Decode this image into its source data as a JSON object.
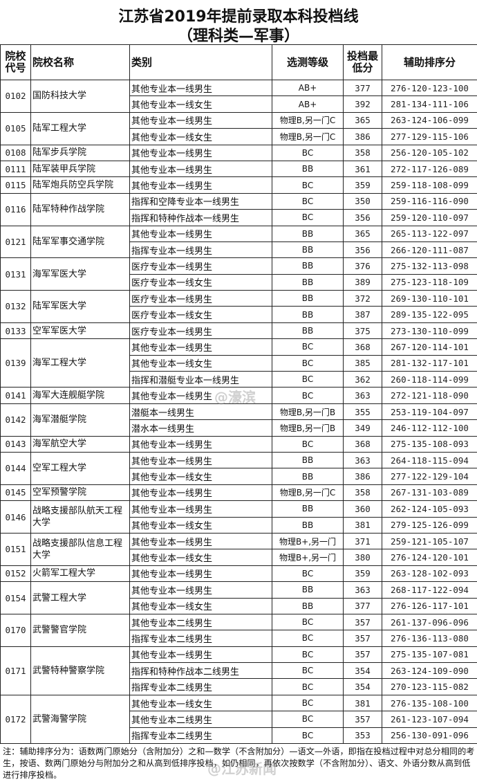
{
  "title": "江苏省2019年提前录取本科投档线",
  "subtitle": "（理科类—军事）",
  "headers": {
    "code": "院校代号",
    "name": "院校名称",
    "category": "类别",
    "level": "选测等级",
    "min": "投档最低分",
    "aux": "辅助排序分"
  },
  "schools": [
    {
      "code": "0102",
      "name": "国防科技大学",
      "rows": [
        [
          "其他专业本一线男生",
          "AB+",
          "377",
          "276-120-123-100"
        ],
        [
          "其他专业本一线女生",
          "AB+",
          "392",
          "281-134-111-106"
        ]
      ]
    },
    {
      "code": "0105",
      "name": "陆军工程大学",
      "rows": [
        [
          "其他专业本一线男生",
          "物理B,另一门C",
          "365",
          "263-124-106-099"
        ],
        [
          "其他专业本一线女生",
          "物理B,另一门C",
          "386",
          "277-129-115-106"
        ]
      ]
    },
    {
      "code": "0108",
      "name": "陆军步兵学院",
      "rows": [
        [
          "其他专业本一线男生",
          "BC",
          "358",
          "256-120-105-102"
        ]
      ]
    },
    {
      "code": "0111",
      "name": "陆军装甲兵学院",
      "rows": [
        [
          "其他专业本一线男生",
          "BB",
          "361",
          "272-117-126-089"
        ]
      ]
    },
    {
      "code": "0115",
      "name": "陆军炮兵防空兵学院",
      "rows": [
        [
          "其他专业本一线男生",
          "BC",
          "359",
          "259-118-108-099"
        ]
      ]
    },
    {
      "code": "0116",
      "name": "陆军特种作战学院",
      "rows": [
        [
          "指挥和空降专业本一线男生",
          "BC",
          "350",
          "259-116-116-090"
        ],
        [
          "指挥和特种作战本一线男生",
          "BC",
          "356",
          "259-120-110-097"
        ]
      ]
    },
    {
      "code": "0121",
      "name": "陆军军事交通学院",
      "rows": [
        [
          "其他专业本一线男生",
          "BB",
          "365",
          "265-113-122-097"
        ],
        [
          "指挥专业本一线男生",
          "BB",
          "356",
          "266-120-111-087"
        ]
      ]
    },
    {
      "code": "0131",
      "name": "海军军医大学",
      "rows": [
        [
          "医疗专业本一线男生",
          "BB",
          "376",
          "275-132-113-098"
        ],
        [
          "医疗专业本一线女生",
          "BB",
          "389",
          "275-123-118-109"
        ]
      ]
    },
    {
      "code": "0132",
      "name": "陆军军医大学",
      "rows": [
        [
          "医疗专业本一线男生",
          "BB",
          "372",
          "269-130-110-101"
        ],
        [
          "医疗专业本一线女生",
          "BB",
          "387",
          "289-135-122-095"
        ]
      ]
    },
    {
      "code": "0133",
      "name": "空军军医大学",
      "rows": [
        [
          "医疗专业本一线男生",
          "BB",
          "375",
          "273-130-110-099"
        ]
      ]
    },
    {
      "code": "0139",
      "name": "海军工程大学",
      "rows": [
        [
          "其他专业本一线男生",
          "BC",
          "368",
          "267-120-114-101"
        ],
        [
          "其他专业本一线女生",
          "BC",
          "385",
          "281-132-117-101"
        ],
        [
          "指挥和潜艇专业本一线男生",
          "BC",
          "362",
          "260-118-114-099"
        ]
      ]
    },
    {
      "code": "0141",
      "name": "海军大连舰艇学院",
      "rows": [
        [
          "其他专业本一线男生",
          "BC",
          "363",
          "272-121-118-090"
        ]
      ]
    },
    {
      "code": "0142",
      "name": "海军潜艇学院",
      "rows": [
        [
          "潜艇本一线男生",
          "物理B,另一门B",
          "355",
          "253-119-104-097"
        ],
        [
          "潜水本一线男生",
          "物理B,另一门B",
          "349",
          "246-112-112-100"
        ]
      ]
    },
    {
      "code": "0143",
      "name": "海军航空大学",
      "rows": [
        [
          "其他专业本一线男生",
          "BC",
          "368",
          "275-135-108-093"
        ]
      ]
    },
    {
      "code": "0144",
      "name": "空军工程大学",
      "rows": [
        [
          "其他专业本一线男生",
          "BB",
          "363",
          "264-118-115-094"
        ],
        [
          "其他专业本一线女生",
          "BB",
          "386",
          "277-122-129-104"
        ]
      ]
    },
    {
      "code": "0145",
      "name": "空军预警学院",
      "rows": [
        [
          "其他专业本一线男生",
          "物理B,另一门C",
          "358",
          "267-131-103-089"
        ]
      ]
    },
    {
      "code": "0146",
      "name": "战略支援部队航天工程大学",
      "rows": [
        [
          "其他专业本一线男生",
          "BB",
          "360",
          "262-124-105-093"
        ],
        [
          "其他专业本一线女生",
          "BB",
          "381",
          "279-125-126-099"
        ]
      ]
    },
    {
      "code": "0151",
      "name": "战略支援部队信息工程大学",
      "rows": [
        [
          "其他专业本一线男生",
          "物理B+,另一门",
          "371",
          "259-121-105-107"
        ],
        [
          "其他专业本一线女生",
          "物理B+,另一门",
          "380",
          "276-124-120-101"
        ]
      ]
    },
    {
      "code": "0152",
      "name": "火箭军工程大学",
      "rows": [
        [
          "其他专业本一线男生",
          "BC",
          "359",
          "263-128-102-093"
        ]
      ]
    },
    {
      "code": "0154",
      "name": "武警工程大学",
      "rows": [
        [
          "其他专业本一线男生",
          "BB",
          "363",
          "268-117-122-094"
        ],
        [
          "其他专业本一线女生",
          "BB",
          "377",
          "276-126-117-101"
        ]
      ]
    },
    {
      "code": "0170",
      "name": "武警警官学院",
      "rows": [
        [
          "其他专业本二线男生",
          "BC",
          "357",
          "261-137-096-096"
        ],
        [
          "指挥专业本二线男生",
          "BC",
          "357",
          "276-136-113-080"
        ]
      ]
    },
    {
      "code": "0171",
      "name": "武警特种警察学院",
      "rows": [
        [
          "其他专业本一线男生",
          "BC",
          "357",
          "275-135-107-081"
        ],
        [
          "指挥和特种作战本二线男生",
          "BC",
          "354",
          "263-124-109-090"
        ],
        [
          "指挥专业本二线男生",
          "BC",
          "354",
          "270-123-115-082"
        ]
      ]
    },
    {
      "code": "0172",
      "name": "武警海警学院",
      "rows": [
        [
          "其他专业本一线女生",
          "BC",
          "381",
          "276-135-108-100"
        ],
        [
          "其他专业本二线男生",
          "BC",
          "357",
          "261-123-107-094"
        ],
        [
          "指挥专业本二线男生",
          "BC",
          "353",
          "256-130-091-096"
        ]
      ]
    }
  ],
  "note": "注：辅助排序分为：语数两门原始分（含附加分）之和—数学（不含附加分）—语文—外语，即指在投档过程中对总分相同的考生，按语、数两门原始分与附加分之和从高到低排序投档，如仍相同，再依次按数学（不含附加分）、语文、外语分数从高到低进行排序投档。",
  "watermarks": [
    "@濠滨",
    "@江苏新闻"
  ]
}
